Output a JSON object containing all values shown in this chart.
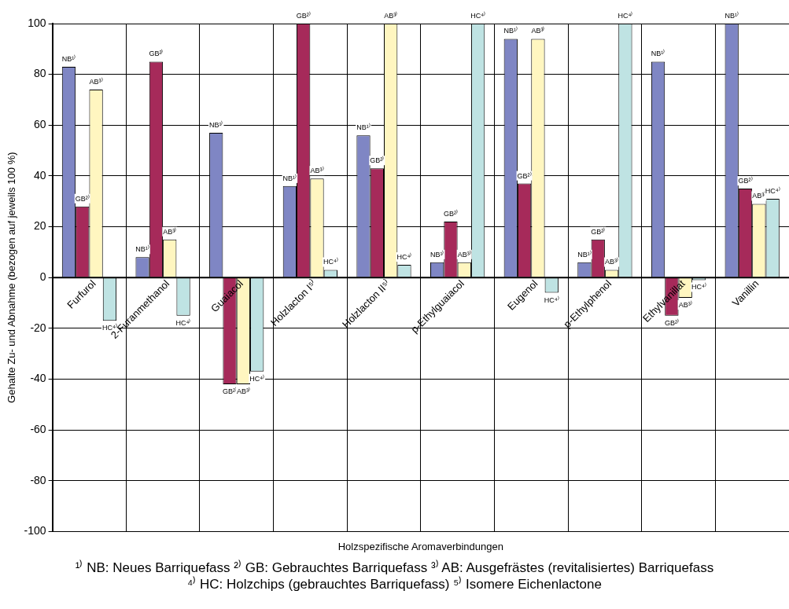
{
  "chart_data": {
    "type": "bar",
    "categories": [
      "Furfurol",
      "2-Furanmethanol",
      "Guaiacol",
      "Holzlacton I⁵⁾",
      "Holzlacton II⁵⁾",
      "p-Ethylguaiacol",
      "Eugenol",
      "p-Ethylphenol",
      "Ethylvanillat",
      "Vanillin"
    ],
    "series": [
      {
        "color": "#7f86c4",
        "values": [
          83,
          8,
          57,
          36,
          56,
          6,
          94,
          6,
          85,
          100
        ],
        "value_labels": [
          "NB¹⁾",
          "NB¹⁾",
          "NB¹⁾",
          "NB¹⁾",
          "NB¹⁾",
          "NB¹⁾",
          "NB¹⁾",
          "NB¹⁾",
          "NB¹⁾",
          "NB¹⁾"
        ]
      },
      {
        "color": "#a62a5a",
        "values": [
          28,
          85,
          -42,
          100,
          43,
          22,
          37,
          15,
          -15,
          35
        ],
        "value_labels": [
          "GB²⁾",
          "GB²⁾",
          "GB²⁾",
          "GB²⁾",
          "GB²⁾",
          "GB²⁾",
          "GB²⁾",
          "GB²⁾",
          "GB²⁾",
          "GB²⁾"
        ]
      },
      {
        "color": "#fff6c0",
        "values": [
          74,
          15,
          -42,
          39,
          100,
          6,
          94,
          3,
          -8,
          29
        ],
        "value_labels": [
          "AB³⁾",
          "AB³⁾",
          "AB³⁾",
          "AB³⁾",
          "AB³⁾",
          "AB³⁾",
          "AB³⁾",
          "AB³⁾",
          "AB³⁾",
          "AB³⁾"
        ]
      },
      {
        "color": "#bfe3e3",
        "values": [
          -17,
          -15,
          -37,
          3,
          5,
          100,
          -6,
          100,
          -1,
          31
        ],
        "value_labels": [
          "HC⁴⁾",
          "HC⁴⁾",
          "HC⁴⁾",
          "HC⁴⁾",
          "HC⁴⁾",
          "HC⁴⁾",
          "HC⁴⁾",
          "HC⁴⁾",
          "HC⁴⁾",
          "HC⁴⁾"
        ]
      }
    ],
    "ylim": [
      -100,
      100
    ],
    "yticks": [
      -100,
      -80,
      -60,
      -40,
      -20,
      0,
      20,
      40,
      60,
      80,
      100
    ],
    "xlabel": "Holzspezifische Aromaverbindungen",
    "ylabel": "Gehalte Zu- und Abnahme (bezogen auf jeweils 100 %)",
    "grid": true,
    "legend": false,
    "annotations": [
      "¹⁾ NB: Neues Barriquefass   ²⁾ GB: Gebrauchtes Barriquefass   ³⁾ AB: Ausgefrästes (revitalisiertes) Barriquefass   ⁴⁾ HC: Holzchips (gebrauchtes Barriquefass)   ⁵⁾ Isomere Eichenlactone"
    ]
  }
}
